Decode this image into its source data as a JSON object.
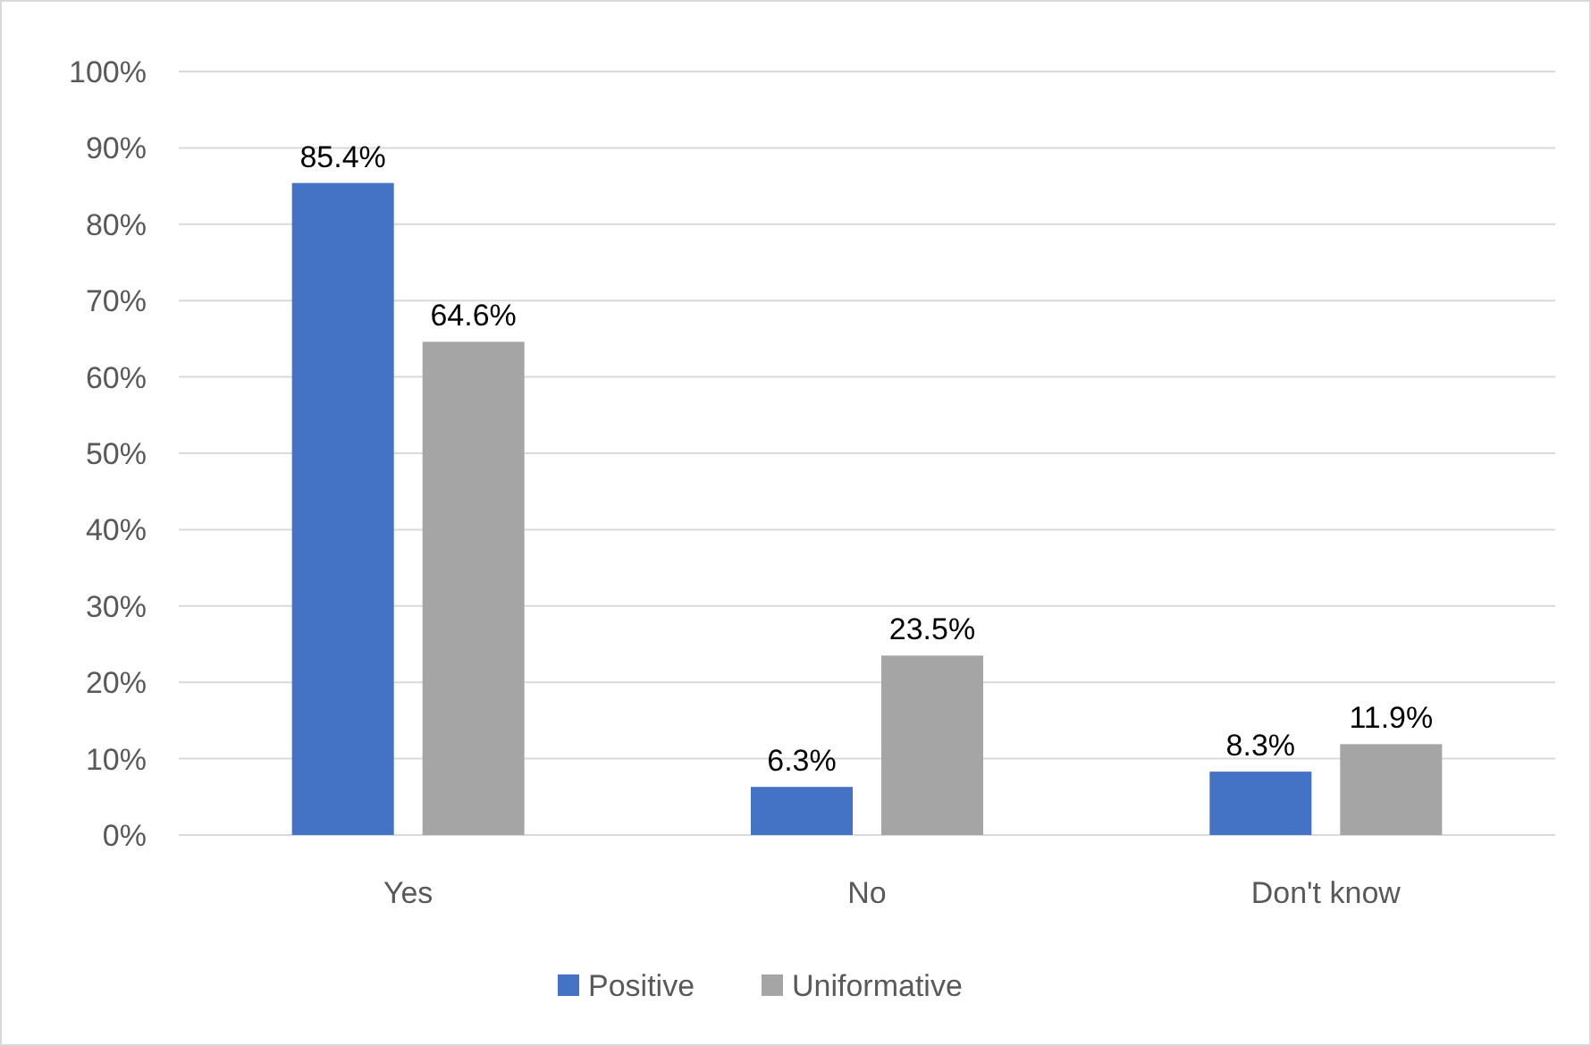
{
  "chart_data": {
    "type": "bar",
    "categories": [
      "Yes",
      "No",
      "Don't know"
    ],
    "series": [
      {
        "name": "Positive",
        "color": "#4472c4",
        "values": [
          85.4,
          6.3,
          8.3
        ],
        "value_labels": [
          "85.4%",
          "6.3%",
          "8.3%"
        ]
      },
      {
        "name": "Uniformative",
        "color": "#a5a5a5",
        "values": [
          64.6,
          23.5,
          11.9
        ],
        "value_labels": [
          "64.6%",
          "23.5%",
          "11.9%"
        ]
      }
    ],
    "ylim": [
      0,
      100
    ],
    "yticks": [
      {
        "value": 0,
        "label": "0%"
      },
      {
        "value": 10,
        "label": "10%"
      },
      {
        "value": 20,
        "label": "20%"
      },
      {
        "value": 30,
        "label": "30%"
      },
      {
        "value": 40,
        "label": "40%"
      },
      {
        "value": 50,
        "label": "50%"
      },
      {
        "value": 60,
        "label": "60%"
      },
      {
        "value": 70,
        "label": "70%"
      },
      {
        "value": 80,
        "label": "80%"
      },
      {
        "value": 90,
        "label": "90%"
      },
      {
        "value": 100,
        "label": "100%"
      }
    ],
    "grid": "y",
    "legend": "bottom"
  }
}
